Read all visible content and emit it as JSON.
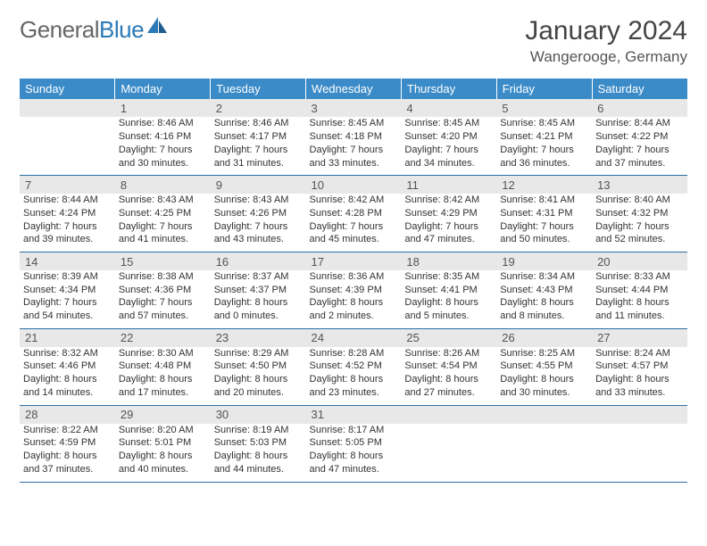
{
  "brand": {
    "part1": "General",
    "part2": "Blue"
  },
  "title": "January 2024",
  "location": "Wangerooge, Germany",
  "styling": {
    "page_bg": "#ffffff",
    "header_bg": "#3b8bc8",
    "header_text": "#ffffff",
    "daynum_bg": "#e8e8e8",
    "daynum_text": "#555555",
    "body_text": "#333333",
    "row_border": "#2a6fa5",
    "brand_gray": "#666666",
    "brand_blue": "#2a7ab8",
    "month_fontsize": 30,
    "location_fontsize": 17,
    "dow_fontsize": 13,
    "cell_fontsize": 11
  },
  "days_of_week": [
    "Sunday",
    "Monday",
    "Tuesday",
    "Wednesday",
    "Thursday",
    "Friday",
    "Saturday"
  ],
  "weeks": [
    [
      null,
      {
        "n": "1",
        "sr": "8:46 AM",
        "ss": "4:16 PM",
        "dl": "7 hours and 30 minutes."
      },
      {
        "n": "2",
        "sr": "8:46 AM",
        "ss": "4:17 PM",
        "dl": "7 hours and 31 minutes."
      },
      {
        "n": "3",
        "sr": "8:45 AM",
        "ss": "4:18 PM",
        "dl": "7 hours and 33 minutes."
      },
      {
        "n": "4",
        "sr": "8:45 AM",
        "ss": "4:20 PM",
        "dl": "7 hours and 34 minutes."
      },
      {
        "n": "5",
        "sr": "8:45 AM",
        "ss": "4:21 PM",
        "dl": "7 hours and 36 minutes."
      },
      {
        "n": "6",
        "sr": "8:44 AM",
        "ss": "4:22 PM",
        "dl": "7 hours and 37 minutes."
      }
    ],
    [
      {
        "n": "7",
        "sr": "8:44 AM",
        "ss": "4:24 PM",
        "dl": "7 hours and 39 minutes."
      },
      {
        "n": "8",
        "sr": "8:43 AM",
        "ss": "4:25 PM",
        "dl": "7 hours and 41 minutes."
      },
      {
        "n": "9",
        "sr": "8:43 AM",
        "ss": "4:26 PM",
        "dl": "7 hours and 43 minutes."
      },
      {
        "n": "10",
        "sr": "8:42 AM",
        "ss": "4:28 PM",
        "dl": "7 hours and 45 minutes."
      },
      {
        "n": "11",
        "sr": "8:42 AM",
        "ss": "4:29 PM",
        "dl": "7 hours and 47 minutes."
      },
      {
        "n": "12",
        "sr": "8:41 AM",
        "ss": "4:31 PM",
        "dl": "7 hours and 50 minutes."
      },
      {
        "n": "13",
        "sr": "8:40 AM",
        "ss": "4:32 PM",
        "dl": "7 hours and 52 minutes."
      }
    ],
    [
      {
        "n": "14",
        "sr": "8:39 AM",
        "ss": "4:34 PM",
        "dl": "7 hours and 54 minutes."
      },
      {
        "n": "15",
        "sr": "8:38 AM",
        "ss": "4:36 PM",
        "dl": "7 hours and 57 minutes."
      },
      {
        "n": "16",
        "sr": "8:37 AM",
        "ss": "4:37 PM",
        "dl": "8 hours and 0 minutes."
      },
      {
        "n": "17",
        "sr": "8:36 AM",
        "ss": "4:39 PM",
        "dl": "8 hours and 2 minutes."
      },
      {
        "n": "18",
        "sr": "8:35 AM",
        "ss": "4:41 PM",
        "dl": "8 hours and 5 minutes."
      },
      {
        "n": "19",
        "sr": "8:34 AM",
        "ss": "4:43 PM",
        "dl": "8 hours and 8 minutes."
      },
      {
        "n": "20",
        "sr": "8:33 AM",
        "ss": "4:44 PM",
        "dl": "8 hours and 11 minutes."
      }
    ],
    [
      {
        "n": "21",
        "sr": "8:32 AM",
        "ss": "4:46 PM",
        "dl": "8 hours and 14 minutes."
      },
      {
        "n": "22",
        "sr": "8:30 AM",
        "ss": "4:48 PM",
        "dl": "8 hours and 17 minutes."
      },
      {
        "n": "23",
        "sr": "8:29 AM",
        "ss": "4:50 PM",
        "dl": "8 hours and 20 minutes."
      },
      {
        "n": "24",
        "sr": "8:28 AM",
        "ss": "4:52 PM",
        "dl": "8 hours and 23 minutes."
      },
      {
        "n": "25",
        "sr": "8:26 AM",
        "ss": "4:54 PM",
        "dl": "8 hours and 27 minutes."
      },
      {
        "n": "26",
        "sr": "8:25 AM",
        "ss": "4:55 PM",
        "dl": "8 hours and 30 minutes."
      },
      {
        "n": "27",
        "sr": "8:24 AM",
        "ss": "4:57 PM",
        "dl": "8 hours and 33 minutes."
      }
    ],
    [
      {
        "n": "28",
        "sr": "8:22 AM",
        "ss": "4:59 PM",
        "dl": "8 hours and 37 minutes."
      },
      {
        "n": "29",
        "sr": "8:20 AM",
        "ss": "5:01 PM",
        "dl": "8 hours and 40 minutes."
      },
      {
        "n": "30",
        "sr": "8:19 AM",
        "ss": "5:03 PM",
        "dl": "8 hours and 44 minutes."
      },
      {
        "n": "31",
        "sr": "8:17 AM",
        "ss": "5:05 PM",
        "dl": "8 hours and 47 minutes."
      },
      null,
      null,
      null
    ]
  ],
  "labels": {
    "sunrise": "Sunrise: ",
    "sunset": "Sunset: ",
    "daylight": "Daylight: "
  }
}
